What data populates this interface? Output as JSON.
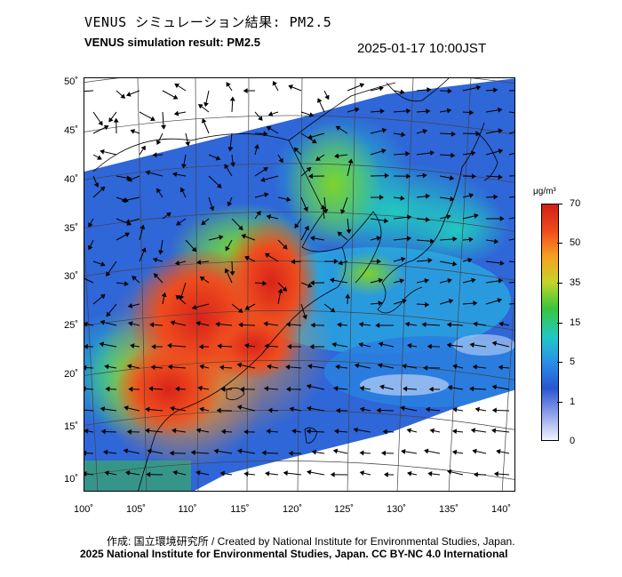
{
  "header": {
    "title_jp": "VENUS シミュレーション結果: PM2.5",
    "title_en": "VENUS simulation result: PM2.5",
    "timestamp": "2025-01-17 10:00JST"
  },
  "map": {
    "lat_labels": [
      "50˚",
      "45˚",
      "40˚",
      "35˚",
      "30˚",
      "25˚",
      "20˚",
      "15˚",
      "10˚"
    ],
    "lon_labels": [
      "100˚",
      "105˚",
      "110˚",
      "115˚",
      "120˚",
      "125˚",
      "130˚",
      "135˚",
      "140˚"
    ],
    "colors": {
      "land_line": "#000000",
      "grid_line": "#555555",
      "vector": "#000000"
    }
  },
  "colorbar": {
    "unit": "μg/m³",
    "labels": [
      "70",
      "50",
      "35",
      "15",
      "5",
      "1",
      "0"
    ],
    "stops": [
      "#d11f16",
      "#ef4a1c",
      "#f6a021",
      "#c6d42a",
      "#3ac63a",
      "#21c9c4",
      "#2a8fe6",
      "#2a55d2",
      "#8fa2e8",
      "#f2f2ff"
    ]
  },
  "footer": {
    "credit": "作成: 国立環境研究所 / Created by National Institute for Environmental Studies, Japan.",
    "license": "2025 National Institute for Environmental Studies, Japan. CC BY-NC 4.0 International"
  }
}
